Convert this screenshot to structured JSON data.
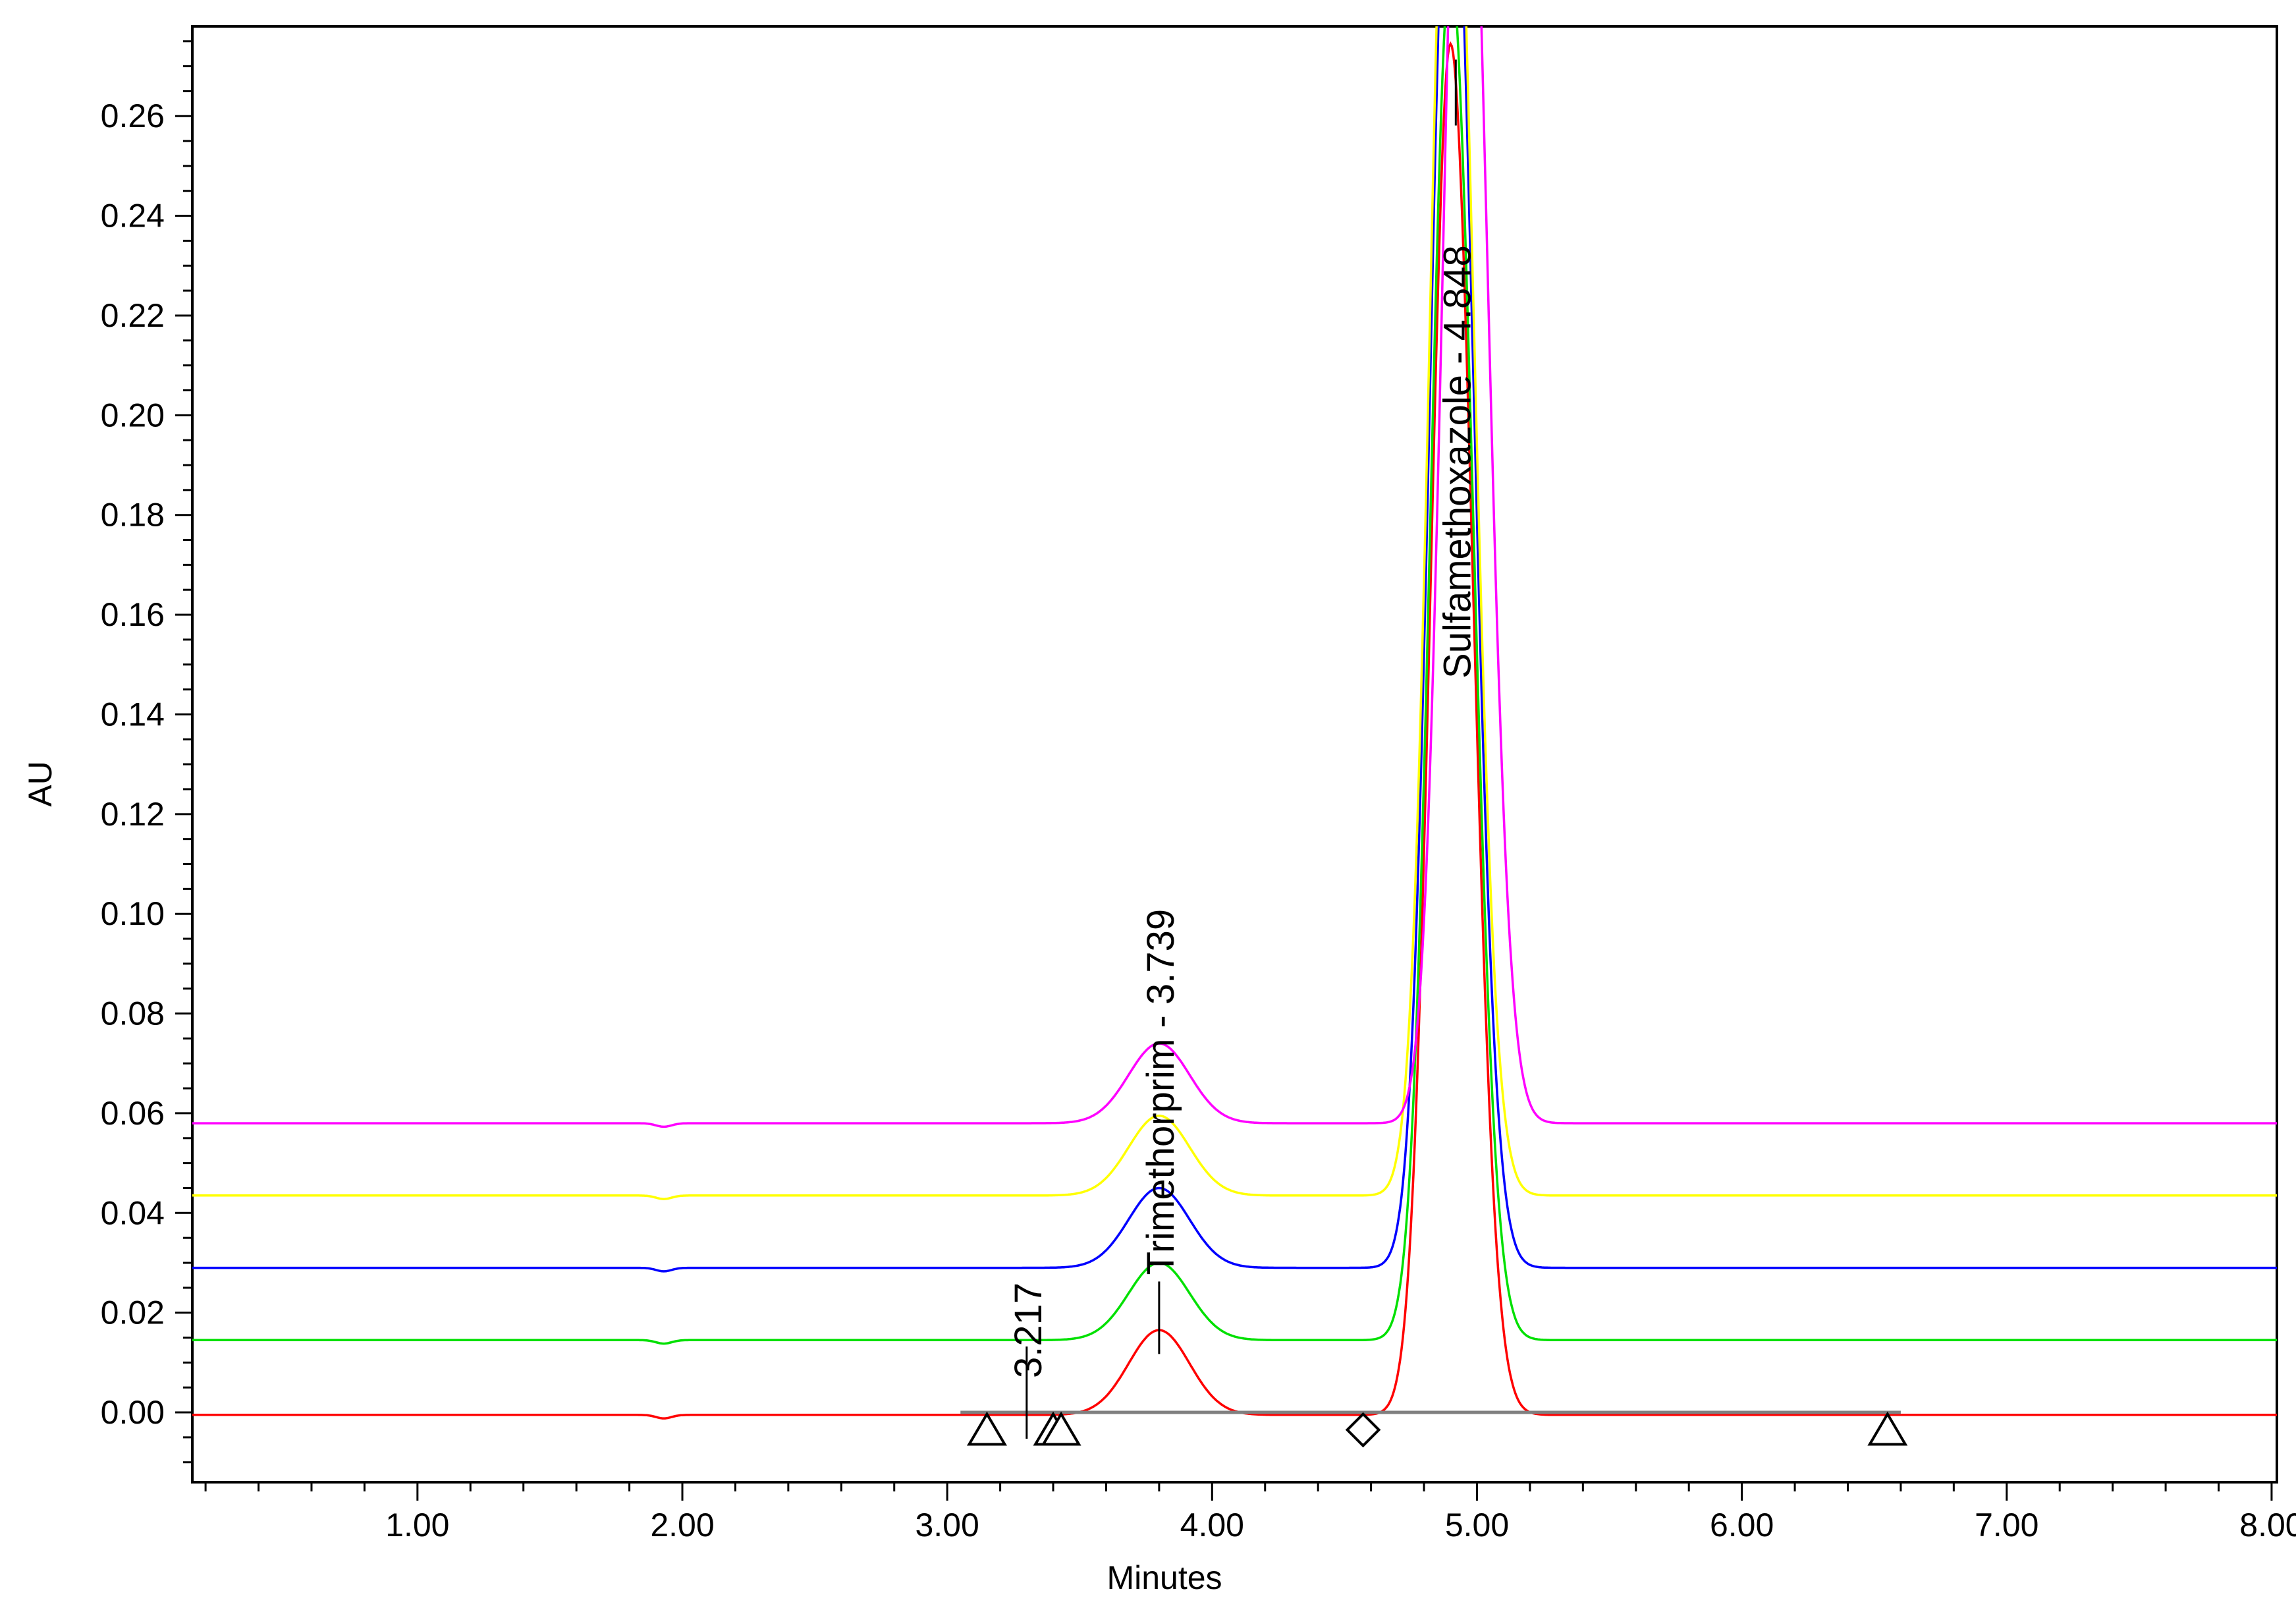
{
  "chart_data": {
    "type": "line",
    "title": "",
    "xlabel": "Minutes",
    "ylabel": "AU",
    "xlim": [
      0.15,
      8.02
    ],
    "ylim": [
      -0.014,
      0.278
    ],
    "x_ticks": [
      1.0,
      2.0,
      3.0,
      4.0,
      5.0,
      6.0,
      7.0,
      8.0
    ],
    "x_tick_labels": [
      "1.00",
      "2.00",
      "3.00",
      "4.00",
      "5.00",
      "6.00",
      "7.00",
      "8.00"
    ],
    "y_ticks": [
      0.0,
      0.02,
      0.04,
      0.06,
      0.08,
      0.1,
      0.12,
      0.14,
      0.16,
      0.18,
      0.2,
      0.22,
      0.24,
      0.26
    ],
    "y_tick_labels": [
      "0.00",
      "0.02",
      "0.04",
      "0.06",
      "0.08",
      "0.10",
      "0.12",
      "0.14",
      "0.16",
      "0.18",
      "0.20",
      "0.22",
      "0.24",
      "0.26"
    ],
    "grid": false,
    "legend": "none",
    "series": [
      {
        "color": "#ff0000",
        "baseline": -0.0005,
        "peak1": {
          "x": 3.8,
          "height": 0.017
        },
        "peak2": {
          "x": 4.9,
          "height": 0.275
        }
      },
      {
        "color": "#00e000",
        "baseline": 0.0145,
        "peak1": {
          "x": 3.8,
          "height": 0.0155
        },
        "peak2": {
          "x": 4.9,
          "height": 0.275
        }
      },
      {
        "color": "#0000ff",
        "baseline": 0.029,
        "peak1": {
          "x": 3.8,
          "height": 0.016
        },
        "peak2": {
          "x": 4.9,
          "height": 0.3
        }
      },
      {
        "color": "#ffff00",
        "baseline": 0.0435,
        "peak1": {
          "x": 3.8,
          "height": 0.016
        },
        "peak2": {
          "x": 4.9,
          "height": 0.3
        }
      },
      {
        "color": "#ff00ff",
        "baseline": 0.058,
        "peak1": {
          "x": 3.8,
          "height": 0.016
        },
        "peak2": {
          "x": 4.95,
          "height": 0.3
        }
      }
    ],
    "integration_baseline": {
      "x_start": 3.05,
      "x_end": 6.6,
      "y": 0.0,
      "color": "#808080"
    },
    "peak_annotations": [
      {
        "text": "3.217",
        "x": 3.3,
        "y": 0.0
      },
      {
        "text": "Trimethorprim - 3.739",
        "x": 3.8,
        "y": 0.017
      },
      {
        "text": "Sulfamethoxazole - 4.848",
        "x": 4.92,
        "y": 0.27
      }
    ],
    "markers": [
      {
        "shape": "triangle",
        "x": 3.15,
        "y": -0.0035
      },
      {
        "shape": "triangle",
        "x": 3.4,
        "y": -0.0035
      },
      {
        "shape": "triangle",
        "x": 3.43,
        "y": -0.0035
      },
      {
        "shape": "diamond",
        "x": 4.57,
        "y": -0.0035
      },
      {
        "shape": "triangle",
        "x": 6.55,
        "y": -0.0035
      }
    ]
  }
}
